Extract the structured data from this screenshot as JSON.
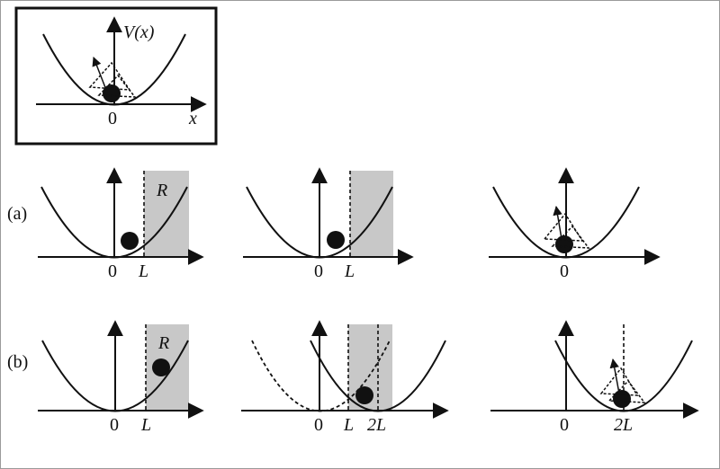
{
  "inset": {
    "v_label": "V(x)",
    "zero_label": "0",
    "x_label": "x"
  },
  "row_a": {
    "row_label": "(a)",
    "panel1": {
      "zero": "0",
      "l": "L",
      "region": "R"
    },
    "panel2": {
      "zero": "0",
      "l": "L"
    },
    "panel3": {
      "zero": "0"
    }
  },
  "row_b": {
    "row_label": "(b)",
    "panel1": {
      "zero": "0",
      "l": "L",
      "region": "R"
    },
    "panel2": {
      "zero": "0",
      "l": "L",
      "two_l": "2L"
    },
    "panel3": {
      "zero": "0",
      "two_l": "2L"
    }
  }
}
